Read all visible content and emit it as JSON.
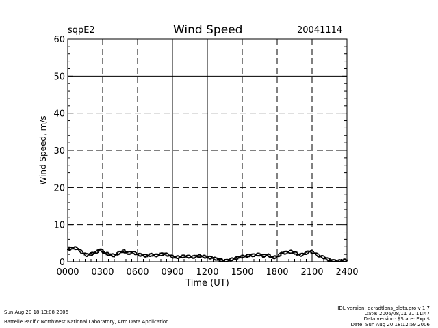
{
  "header": {
    "station": "sqpE2",
    "title": "Wind Speed",
    "date": "20041114"
  },
  "chart_data": {
    "type": "scatter",
    "title": "Wind Speed",
    "xlabel": "Time (UT)",
    "ylabel": "Wind Speed, m/s",
    "xlim": [
      0,
      24
    ],
    "ylim": [
      0,
      60
    ],
    "x_ticks": [
      0,
      3,
      6,
      9,
      12,
      15,
      18,
      21,
      24
    ],
    "x_tick_labels": [
      "0000",
      "0300",
      "0600",
      "0900",
      "1200",
      "1500",
      "1800",
      "2100",
      "2400"
    ],
    "y_ticks": [
      0,
      10,
      20,
      30,
      40,
      50,
      60
    ],
    "y_tick_labels": [
      "0",
      "10",
      "20",
      "30",
      "40",
      "50",
      "60"
    ],
    "grid": "dashed",
    "reference_lines": {
      "y": [
        50
      ],
      "x": [
        9,
        12
      ]
    },
    "x_minor_step": 0.5,
    "y_minor_step": 2,
    "marker_color": "#000000",
    "series": [
      {
        "x": [
          0.0,
          0.4,
          0.8,
          1.2,
          1.6,
          2.0,
          2.4,
          2.8,
          3.2,
          3.6,
          4.0,
          4.4,
          4.8,
          5.2,
          5.6,
          6.0,
          6.4,
          6.8,
          7.2,
          7.6,
          8.0,
          8.4,
          8.8,
          9.2,
          9.6,
          10.0,
          10.4,
          10.8,
          11.2,
          11.6,
          12.0,
          12.4,
          12.8,
          13.2,
          13.6,
          14.0,
          14.4,
          14.8,
          15.2,
          15.6,
          16.0,
          16.4,
          16.8,
          17.2,
          17.6,
          18.0,
          18.4,
          18.8,
          19.2,
          19.6,
          20.0,
          20.4,
          20.8,
          21.2,
          21.6,
          22.0,
          22.4,
          22.8,
          23.2,
          23.6,
          24.0
        ],
        "values": [
          3.3,
          3.7,
          3.6,
          2.6,
          1.8,
          2.1,
          2.4,
          3.3,
          2.3,
          2.0,
          1.7,
          2.4,
          2.9,
          2.3,
          2.6,
          2.0,
          1.8,
          1.6,
          1.9,
          1.7,
          2.0,
          2.1,
          1.6,
          1.2,
          1.3,
          1.5,
          1.4,
          1.3,
          1.6,
          1.5,
          1.2,
          1.1,
          0.7,
          0.4,
          0.2,
          0.6,
          0.9,
          1.3,
          1.5,
          1.7,
          1.8,
          2.0,
          1.6,
          1.9,
          1.1,
          1.4,
          2.3,
          2.5,
          2.7,
          2.3,
          1.8,
          2.2,
          2.8,
          2.4,
          1.6,
          1.2,
          0.6,
          0.2,
          0.1,
          0.3,
          0.4
        ]
      }
    ]
  },
  "footer": {
    "left_line1": "Sun Aug 20 18:13:08 2006",
    "left_line2": "Battelle Pacific Northwest National Laboratory, Arm Data Application",
    "right_line1": "IDL version: qcradtlons_plots.pro,v 1.7",
    "right_line2": "Date: 2006/08/11 21:11:47",
    "right_line3": "Data version: $State: Exp $",
    "right_line4": "Date: Sun Aug 20 18:12:59 2006"
  }
}
